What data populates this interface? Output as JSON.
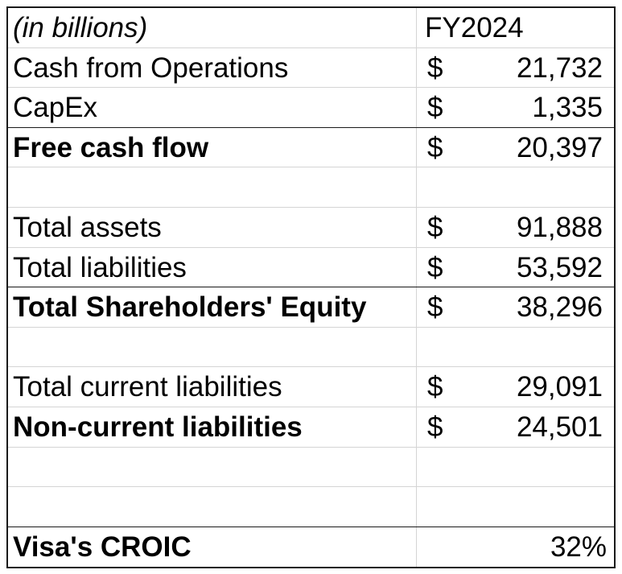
{
  "header": {
    "unit_label": "(in billions)",
    "period": "FY2024"
  },
  "currency_symbol": "$",
  "cash_flow": {
    "cash_from_operations": {
      "label": "Cash from Operations",
      "value": "21,732"
    },
    "capex": {
      "label": "CapEx",
      "value": "1,335"
    },
    "free_cash_flow": {
      "label": "Free cash flow",
      "value": "20,397"
    }
  },
  "balance_sheet": {
    "total_assets": {
      "label": "Total assets",
      "value": "91,888"
    },
    "total_liabilities": {
      "label": "Total liabilities",
      "value": "53,592"
    },
    "shareholders_equity": {
      "label": "Total Shareholders' Equity",
      "value": "38,296"
    }
  },
  "liabilities": {
    "current": {
      "label": "Total current liabilities",
      "value": "29,091"
    },
    "non_current": {
      "label": "Non-current liabilities",
      "value": "24,501"
    }
  },
  "croic": {
    "label": "Visa's CROIC",
    "value": "32%"
  }
}
